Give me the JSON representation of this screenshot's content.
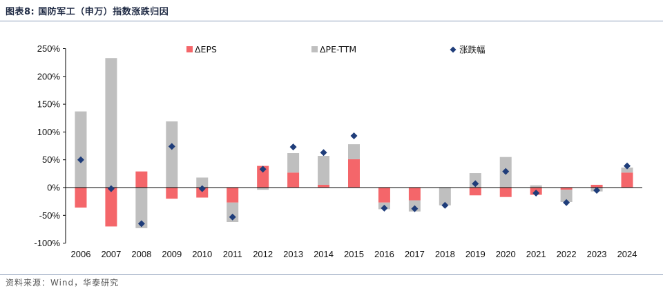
{
  "header": {
    "title": "图表8:  国防军工（申万）指数涨跌归因"
  },
  "footer": {
    "source": "资料来源：Wind，华泰研究"
  },
  "colors": {
    "eps": "#F4666A",
    "pe": "#BFBFBF",
    "change": "#1F3D7A",
    "axis": "#000000"
  },
  "chart_data": {
    "type": "bar",
    "title": "国防军工（申万）指数涨跌归因",
    "stacked": true,
    "categories": [
      "2006",
      "2007",
      "2008",
      "2009",
      "2010",
      "2011",
      "2012",
      "2013",
      "2014",
      "2015",
      "2016",
      "2017",
      "2018",
      "2019",
      "2020",
      "2021",
      "2022",
      "2023",
      "2024"
    ],
    "y_ticks": [
      "250%",
      "200%",
      "150%",
      "100%",
      "50%",
      "0%",
      "-50%",
      "-100%"
    ],
    "ylim": [
      -100,
      250
    ],
    "y_unit": "%",
    "legend_position": "top",
    "series": [
      {
        "name": "ΔEPS",
        "kind": "bar",
        "color": "#F4666A",
        "values": [
          -36,
          -70,
          29,
          -20,
          -18,
          -27,
          39,
          27,
          5,
          51,
          -27,
          -23,
          0,
          -14,
          -17,
          -13,
          -4,
          5,
          27
        ]
      },
      {
        "name": "ΔPE-TTM",
        "kind": "bar",
        "color": "#BFBFBF",
        "values": [
          137,
          233,
          -73,
          119,
          18,
          -35,
          -4,
          35,
          52,
          27,
          -12,
          -20,
          -32,
          26,
          55,
          4,
          -22,
          -7,
          9
        ]
      },
      {
        "name": "涨跌幅",
        "kind": "marker",
        "color": "#1F3D7A",
        "values": [
          50,
          -2,
          -65,
          74,
          -2,
          -53,
          33,
          73,
          63,
          93,
          -37,
          -38,
          -32,
          7,
          29,
          -10,
          -27,
          -5,
          39
        ]
      }
    ]
  }
}
